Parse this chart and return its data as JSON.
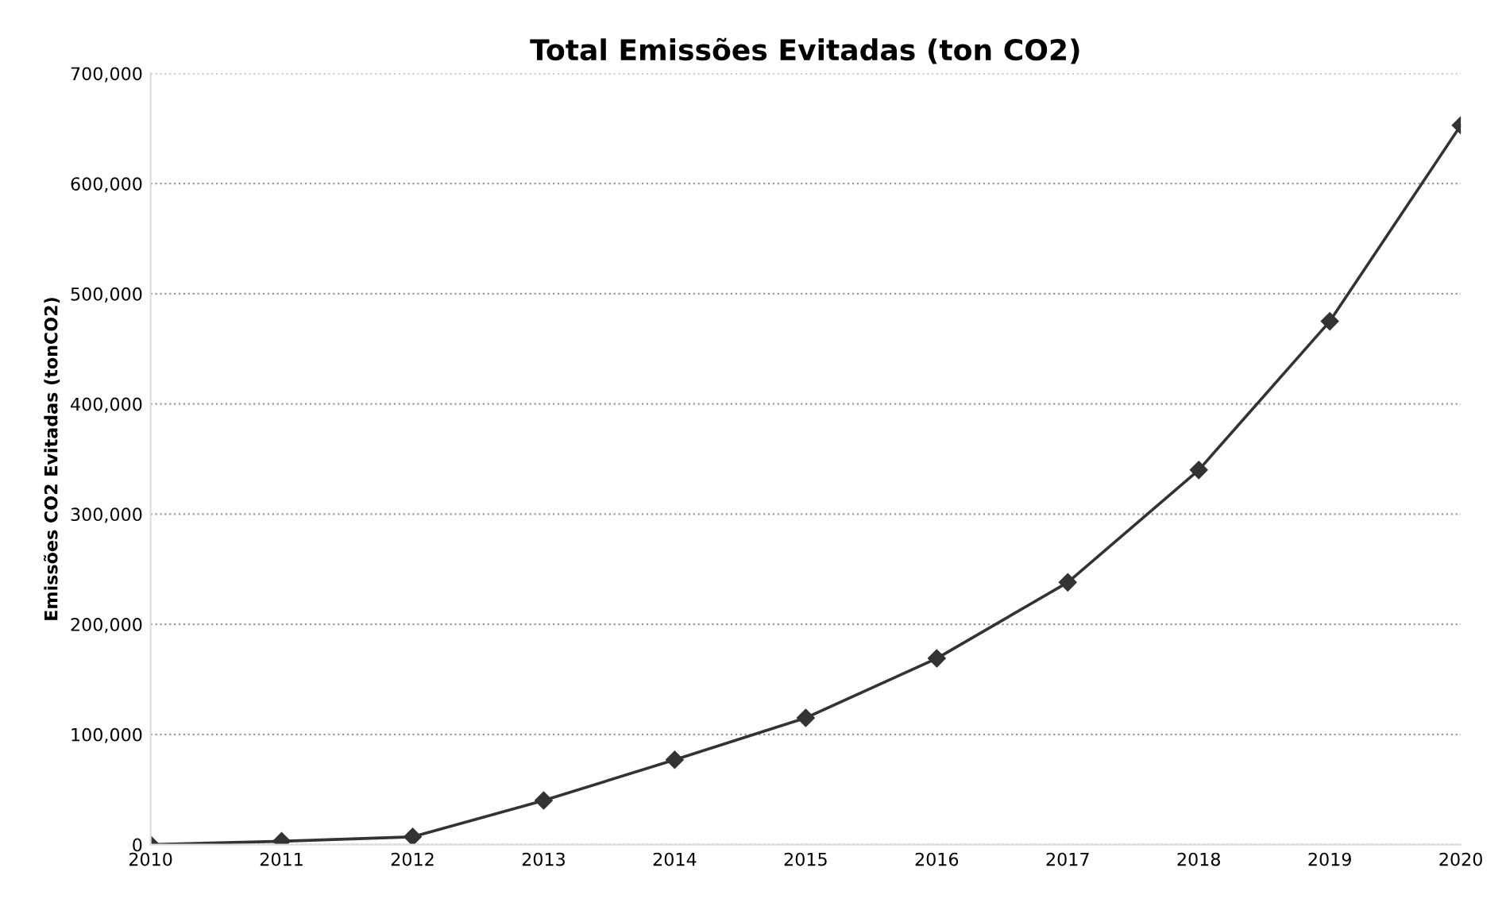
{
  "chart_data": {
    "type": "line",
    "title": "Total Emissões Evitadas (ton CO2)",
    "ylabel": "Emissões CO2 Evitadas (tonCO2)",
    "x": [
      2010,
      2011,
      2012,
      2013,
      2014,
      2015,
      2016,
      2017,
      2018,
      2019,
      2020
    ],
    "series": [
      {
        "color": "#333333",
        "values": [
          0,
          3000,
          7000,
          40000,
          77000,
          115000,
          169000,
          238000,
          340000,
          475000,
          653000
        ]
      }
    ],
    "xlim": [
      2010,
      2020
    ],
    "xticks": [
      2010,
      2011,
      2012,
      2013,
      2014,
      2015,
      2016,
      2017,
      2018,
      2019,
      2020
    ],
    "ylim": [
      0,
      700000
    ],
    "yticks": [
      {
        "value": 0,
        "label": "0"
      },
      {
        "value": 100000,
        "label": "100,000"
      },
      {
        "value": 200000,
        "label": "200,000"
      },
      {
        "value": 300000,
        "label": "300,000"
      },
      {
        "value": 400000,
        "label": "400,000"
      },
      {
        "value": 500000,
        "label": "500,000"
      },
      {
        "value": 600000,
        "label": "600,000"
      },
      {
        "value": 700000,
        "label": "700,000"
      }
    ],
    "grid": "y",
    "marker": "diamond",
    "line_style": "solid",
    "legend": false
  }
}
